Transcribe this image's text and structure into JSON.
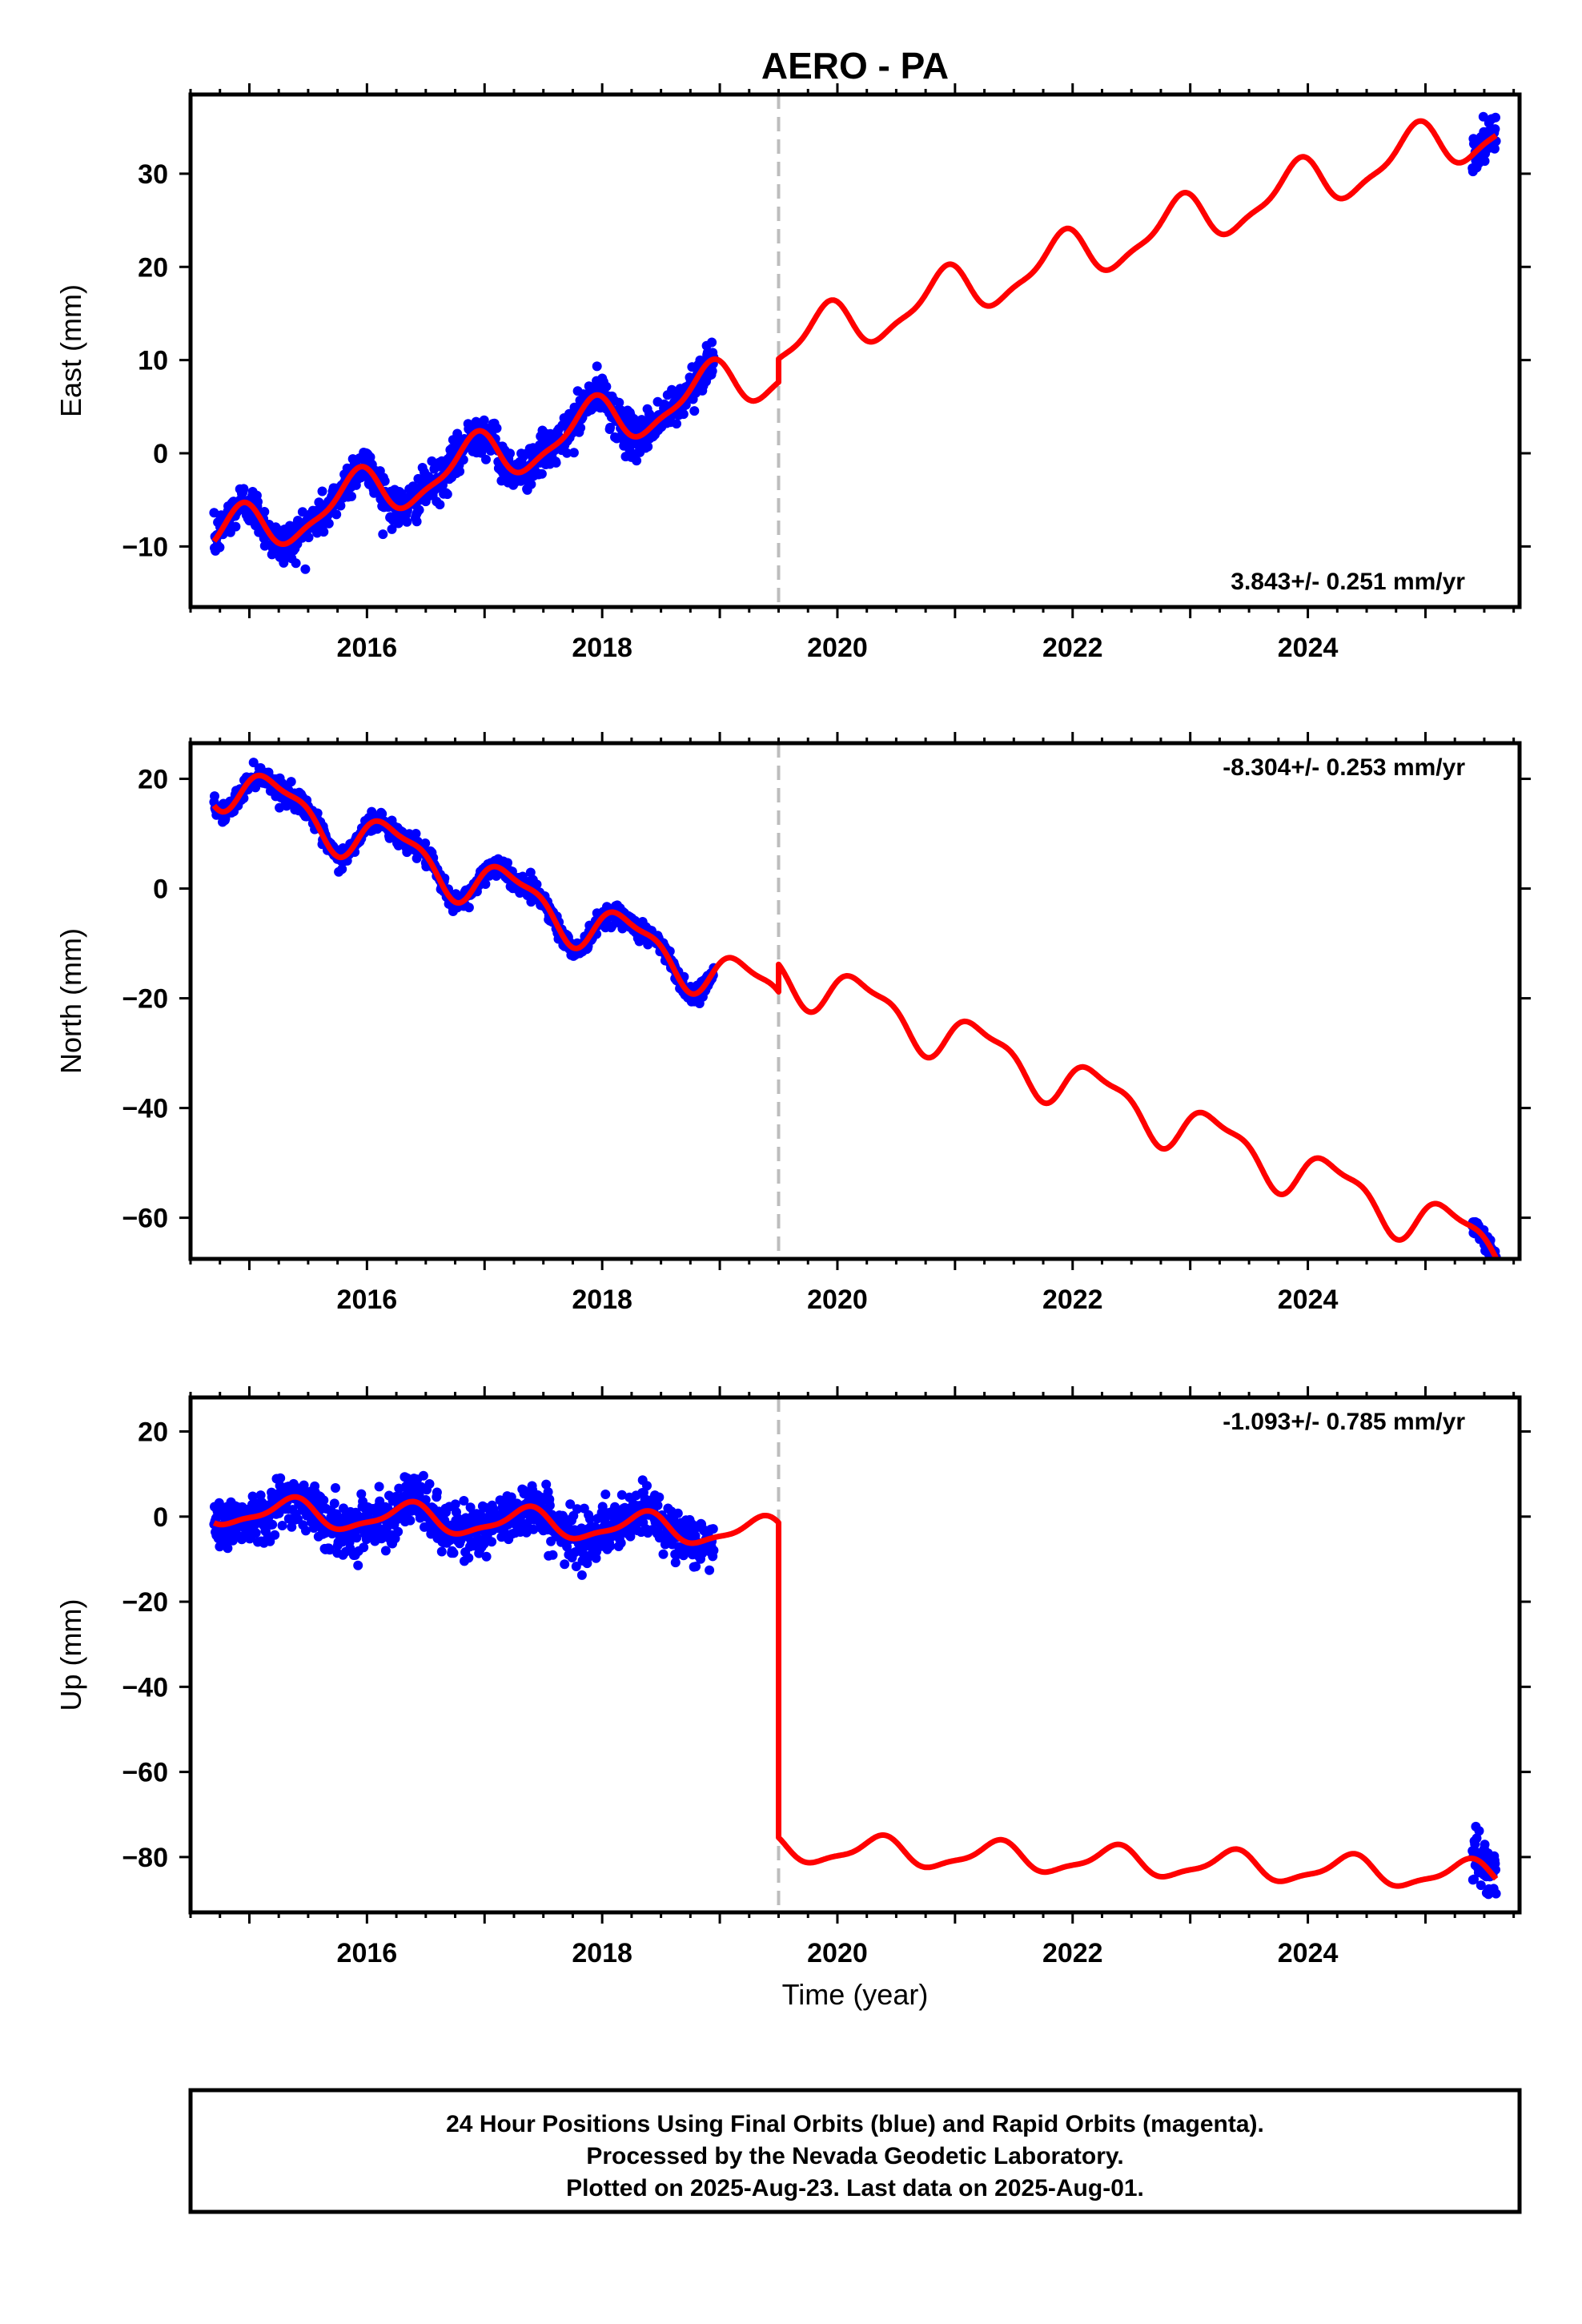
{
  "title": "AERO - PA",
  "x_axis_label": "Time (year)",
  "footer": [
    "24 Hour Positions Using Final Orbits (blue) and Rapid Orbits (magenta).",
    "Processed by the Nevada Geodetic Laboratory.",
    "Plotted on 2025-Aug-23. Last data on 2025-Aug-01."
  ],
  "colors": {
    "data": "#0000ff",
    "model": "#ff0000",
    "event_line": "#bdbdbd",
    "frame": "#000000"
  },
  "chart_data": [
    {
      "type": "scatter",
      "component": "East",
      "ylabel": "East (mm)",
      "xlim": [
        2014.5,
        2025.8
      ],
      "ylim": [
        -16.5,
        38.5
      ],
      "yticks": [
        -10,
        0,
        10,
        20,
        30
      ],
      "xticks": [
        2016,
        2018,
        2020,
        2022,
        2024
      ],
      "rate_text": "3.843+/- 0.251 mm/yr",
      "rate_position": "bottom-right",
      "event_line_x": 2019.5,
      "segments": [
        {
          "x_start": 2014.7,
          "x_end": 2019.5,
          "offset": 0
        },
        {
          "x_start": 2019.5,
          "x_end": 2025.6,
          "offset": 2.5
        }
      ],
      "model": {
        "t0": 2015.5,
        "intercept": -6.4,
        "rate": 3.843,
        "annual_amp": 2.6,
        "annual_phase": 0.35,
        "semiannual_amp": 0.8,
        "semiannual_phase": 0.15
      },
      "observations": [
        {
          "x_start": 2014.7,
          "x_end": 2018.95,
          "scatter_mm": 1.1
        },
        {
          "x_start": 2025.4,
          "x_end": 2025.6,
          "scatter_mm": 1.0
        }
      ]
    },
    {
      "type": "scatter",
      "component": "North",
      "ylabel": "North (mm)",
      "xlim": [
        2014.5,
        2025.8
      ],
      "ylim": [
        -67.5,
        26.5
      ],
      "yticks": [
        -60,
        -40,
        -20,
        0,
        20
      ],
      "xticks": [
        2016,
        2018,
        2020,
        2022,
        2024
      ],
      "rate_text": "-8.304+/- 0.253 mm/yr",
      "rate_position": "top-right",
      "event_line_x": 2019.5,
      "segments": [
        {
          "x_start": 2014.7,
          "x_end": 2019.5,
          "offset": 0
        },
        {
          "x_start": 2019.5,
          "x_end": 2025.6,
          "offset": 5.0
        }
      ],
      "model": {
        "t0": 2015.5,
        "intercept": 13.5,
        "rate": -8.304,
        "annual_amp": 4.2,
        "annual_phase": 0.02,
        "semiannual_amp": 1.5,
        "semiannual_phase": 0.1
      },
      "observations": [
        {
          "x_start": 2014.7,
          "x_end": 2018.95,
          "scatter_mm": 0.9
        },
        {
          "x_start": 2025.4,
          "x_end": 2025.6,
          "scatter_mm": 0.8
        }
      ]
    },
    {
      "type": "scatter",
      "component": "Up",
      "ylabel": "Up (mm)",
      "xlim": [
        2014.5,
        2025.8
      ],
      "ylim": [
        -93,
        28
      ],
      "yticks": [
        -80,
        -60,
        -40,
        -20,
        0,
        20
      ],
      "xticks": [
        2016,
        2018,
        2020,
        2022,
        2024
      ],
      "rate_text": "-1.093+/- 0.785 mm/yr",
      "rate_position": "top-right",
      "event_line_x": 2019.5,
      "segments": [
        {
          "x_start": 2014.7,
          "x_end": 2019.5,
          "offset": 0
        },
        {
          "x_start": 2019.5,
          "x_end": 2025.6,
          "offset": -74.0
        }
      ],
      "model": {
        "t0": 2015.5,
        "intercept": 0.5,
        "rate": -1.093,
        "annual_amp": 3.2,
        "annual_phase": -0.1,
        "semiannual_amp": 1.0,
        "semiannual_phase": 0.2
      },
      "observations": [
        {
          "x_start": 2014.7,
          "x_end": 2018.95,
          "scatter_mm": 3.0
        },
        {
          "x_start": 2025.4,
          "x_end": 2025.6,
          "scatter_mm": 3.0
        }
      ]
    }
  ]
}
